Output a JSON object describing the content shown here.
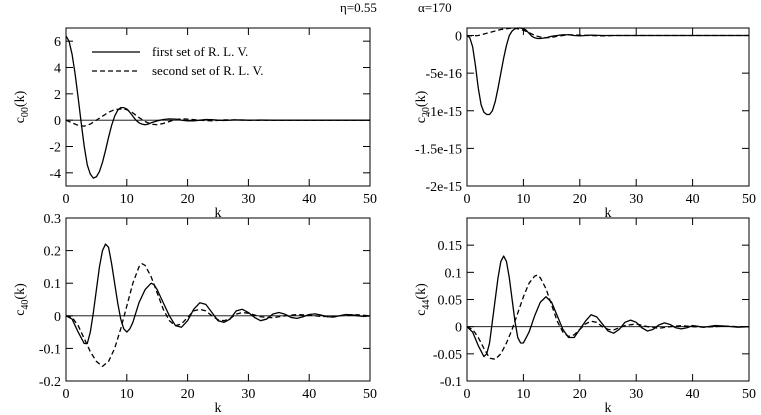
{
  "header": {
    "eta_label": "η=0.55",
    "alpha_label": "α=170"
  },
  "legend": [
    {
      "label": "first set of R. L. V.",
      "style": "solid"
    },
    {
      "label": "second set of R. L. V.",
      "style": "dashed"
    }
  ],
  "chart_data": [
    {
      "type": "line",
      "ylabel_main": "c",
      "ylabel_sub": "00",
      "ylabel_tail": "(k)",
      "xlabel": "k",
      "xlim": [
        0,
        50
      ],
      "ylim": [
        -5,
        7
      ],
      "xticks": [
        0,
        10,
        20,
        30,
        40,
        50
      ],
      "yticks": [
        -4,
        -2,
        0,
        2,
        4,
        6
      ],
      "ytick_labels": [
        "-4",
        "-2",
        "0",
        "2",
        "4",
        "6"
      ],
      "series": [
        {
          "name": "first set of R. L. V.",
          "style": "solid",
          "x": [
            0,
            0.5,
            1,
            1.5,
            2,
            2.5,
            3,
            3.5,
            4,
            4.5,
            5,
            5.5,
            6,
            6.5,
            7,
            7.5,
            8,
            8.5,
            9,
            9.5,
            10,
            10.5,
            11,
            11.5,
            12,
            12.5,
            13,
            13.5,
            14,
            15,
            16,
            17,
            18,
            19,
            20,
            21,
            22,
            23,
            24,
            25,
            26,
            28,
            30,
            32,
            34,
            36,
            40,
            45,
            50
          ],
          "y": [
            6.4,
            6.0,
            5.0,
            3.5,
            1.7,
            -0.2,
            -2.0,
            -3.4,
            -4.1,
            -4.4,
            -4.3,
            -3.9,
            -3.2,
            -2.3,
            -1.3,
            -0.4,
            0.3,
            0.75,
            0.95,
            0.95,
            0.85,
            0.6,
            0.3,
            0.0,
            -0.2,
            -0.3,
            -0.35,
            -0.3,
            -0.2,
            -0.05,
            0.05,
            0.1,
            0.08,
            0.0,
            -0.05,
            -0.05,
            0.0,
            0.05,
            0.04,
            0.0,
            -0.02,
            0.02,
            0.0,
            0.01,
            0.0,
            0.0,
            0.0,
            0.0,
            0.0
          ]
        },
        {
          "name": "second set of R. L. V.",
          "style": "dashed",
          "x": [
            0,
            1,
            2,
            3,
            4,
            5,
            6,
            7,
            8,
            9,
            10,
            11,
            12,
            13,
            14,
            15,
            16,
            17,
            18,
            19,
            20,
            22,
            24,
            26,
            28,
            30,
            35,
            40,
            45,
            50
          ],
          "y": [
            0.0,
            -0.2,
            -0.4,
            -0.45,
            -0.3,
            0.0,
            0.3,
            0.6,
            0.8,
            0.85,
            0.8,
            0.55,
            0.2,
            -0.1,
            -0.3,
            -0.35,
            -0.25,
            -0.1,
            0.05,
            0.1,
            0.08,
            0.0,
            -0.05,
            0.02,
            0.02,
            0.0,
            0.0,
            0.0,
            0.0,
            0.0
          ]
        }
      ]
    },
    {
      "type": "line",
      "ylabel_main": "c",
      "ylabel_sub": "20",
      "ylabel_tail": "(k)",
      "xlabel": "k",
      "xlim": [
        0,
        50
      ],
      "ylim": [
        -2e-15,
        1e-16
      ],
      "xticks": [
        0,
        10,
        20,
        30,
        40,
        50
      ],
      "yticks": [
        -2e-15,
        -1.5e-15,
        -1e-15,
        -5e-16,
        0
      ],
      "ytick_labels": [
        "-2e-15",
        "-1.5e-15",
        "-1e-15",
        "-5e-16",
        "0"
      ],
      "series": [
        {
          "name": "first set of R. L. V.",
          "style": "solid",
          "x": [
            0,
            0.5,
            1,
            1.5,
            2,
            2.5,
            3,
            3.5,
            4,
            4.5,
            5,
            5.5,
            6,
            6.5,
            7,
            7.5,
            8,
            8.5,
            9,
            9.5,
            10,
            10.5,
            11,
            11.5,
            12,
            12.5,
            13,
            14,
            15,
            16,
            17,
            18,
            19,
            20,
            21,
            22,
            24,
            26,
            28,
            30,
            35,
            40,
            45,
            50
          ],
          "y": [
            0,
            -3e-17,
            -1.5e-16,
            -4e-16,
            -7e-16,
            -9.2e-16,
            -1.02e-15,
            -1.05e-15,
            -1.05e-15,
            -1e-15,
            -8.8e-16,
            -7e-16,
            -5e-16,
            -3e-16,
            -1.3e-16,
            0.0,
            6e-17,
            9e-17,
            1e-16,
            1e-16,
            9e-17,
            7e-17,
            3e-17,
            -1e-17,
            -3e-17,
            -4e-17,
            -4e-17,
            -3e-17,
            -1e-17,
            0.0,
            1e-17,
            1e-17,
            0.0,
            -5e-18,
            0.0,
            5e-18,
            0.0,
            0.0,
            0.0,
            0.0,
            0.0,
            0.0,
            0.0,
            0.0
          ]
        },
        {
          "name": "second set of R. L. V.",
          "style": "dashed",
          "x": [
            0,
            1,
            2,
            3,
            4,
            5,
            6,
            7,
            8,
            9,
            10,
            11,
            12,
            13,
            14,
            15,
            16,
            18,
            20,
            22,
            24,
            26,
            30,
            35,
            40,
            45,
            50
          ],
          "y": [
            0,
            -5e-18,
            0.0,
            2e-17,
            4e-17,
            6e-17,
            8e-17,
            9e-17,
            1e-16,
            9e-17,
            7e-17,
            4e-17,
            0.0,
            -2e-17,
            -3e-17,
            -2.5e-17,
            -1e-17,
            1e-17,
            5e-18,
            0.0,
            -5e-18,
            0.0,
            0.0,
            0.0,
            0.0,
            0.0,
            0.0
          ]
        }
      ]
    },
    {
      "type": "line",
      "ylabel_main": "c",
      "ylabel_sub": "40",
      "ylabel_tail": "(k)",
      "xlabel": "k",
      "xlim": [
        0,
        50
      ],
      "ylim": [
        -0.2,
        0.3
      ],
      "xticks": [
        0,
        10,
        20,
        30,
        40,
        50
      ],
      "yticks": [
        -0.2,
        -0.1,
        0,
        0.1,
        0.2,
        0.3
      ],
      "ytick_labels": [
        "-0.2",
        "-0.1",
        "0",
        "0.1",
        "0.2",
        "0.3"
      ],
      "series": [
        {
          "name": "first set of R. L. V.",
          "style": "solid",
          "x": [
            0,
            1,
            2,
            3,
            3.5,
            4,
            4.5,
            5,
            5.5,
            6,
            6.5,
            7,
            7.5,
            8,
            8.5,
            9,
            9.5,
            10,
            10.5,
            11,
            11.5,
            12,
            13,
            14,
            14.5,
            15,
            16,
            17,
            18,
            19,
            20,
            21,
            22,
            23,
            24,
            25,
            26,
            27,
            28,
            29,
            30,
            31,
            32,
            33,
            34,
            35,
            36,
            37,
            38,
            39,
            40,
            41,
            42,
            43,
            44,
            45,
            46,
            47,
            48,
            49,
            50
          ],
          "y": [
            0,
            -0.01,
            -0.05,
            -0.085,
            -0.085,
            -0.05,
            0.01,
            0.08,
            0.15,
            0.2,
            0.22,
            0.21,
            0.16,
            0.1,
            0.04,
            -0.01,
            -0.04,
            -0.05,
            -0.04,
            -0.02,
            0.01,
            0.04,
            0.08,
            0.1,
            0.095,
            0.08,
            0.04,
            0.0,
            -0.03,
            -0.035,
            -0.015,
            0.02,
            0.04,
            0.035,
            0.01,
            -0.015,
            -0.02,
            -0.01,
            0.015,
            0.02,
            0.01,
            -0.005,
            -0.015,
            -0.01,
            0.005,
            0.01,
            0.005,
            -0.005,
            -0.008,
            -0.003,
            0.004,
            0.006,
            0.002,
            -0.003,
            -0.004,
            0.0,
            0.004,
            0.003,
            0.0,
            -0.002,
            0.0
          ]
        },
        {
          "name": "second set of R. L. V.",
          "style": "dashed",
          "x": [
            0,
            1,
            2,
            3,
            4,
            5,
            6,
            7,
            8,
            9,
            10,
            11,
            12,
            12.5,
            13,
            14,
            15,
            16,
            17,
            18,
            19,
            20,
            21,
            22,
            23,
            24,
            25,
            26,
            27,
            28,
            29,
            30,
            32,
            34,
            36,
            38,
            40,
            42,
            44,
            46,
            48,
            50
          ],
          "y": [
            0,
            -0.005,
            -0.03,
            -0.07,
            -0.11,
            -0.14,
            -0.155,
            -0.14,
            -0.1,
            -0.04,
            0.03,
            0.1,
            0.15,
            0.16,
            0.155,
            0.12,
            0.07,
            0.02,
            -0.015,
            -0.03,
            -0.025,
            -0.005,
            0.015,
            0.02,
            0.015,
            0.0,
            -0.012,
            -0.015,
            -0.008,
            0.005,
            0.01,
            0.008,
            -0.003,
            -0.006,
            0.0,
            0.004,
            0.002,
            -0.002,
            -0.002,
            0.002,
            0.003,
            0.0
          ]
        }
      ]
    },
    {
      "type": "line",
      "ylabel_main": "c",
      "ylabel_sub": "44",
      "ylabel_tail": "(k)",
      "xlabel": "k",
      "xlim": [
        0,
        50
      ],
      "ylim": [
        -0.1,
        0.2
      ],
      "xticks": [
        0,
        10,
        20,
        30,
        40,
        50
      ],
      "yticks": [
        -0.1,
        -0.05,
        0,
        0.05,
        0.1,
        0.15
      ],
      "ytick_labels": [
        "-0.1",
        "-0.05",
        "0",
        "0.05",
        "0.1",
        "0.15"
      ],
      "series": [
        {
          "name": "first set of R. L. V.",
          "style": "solid",
          "x": [
            0,
            1,
            2,
            3,
            3.5,
            4,
            4.5,
            5,
            5.5,
            6,
            6.5,
            7,
            7.5,
            8,
            8.5,
            9,
            9.5,
            10,
            10.5,
            11,
            12,
            13,
            14,
            15,
            16,
            17,
            18,
            19,
            20,
            21,
            22,
            23,
            24,
            25,
            26,
            27,
            28,
            29,
            30,
            31,
            32,
            33,
            34,
            35,
            36,
            37,
            38,
            39,
            40,
            42,
            44,
            46,
            48,
            50
          ],
          "y": [
            0,
            -0.01,
            -0.035,
            -0.055,
            -0.05,
            -0.03,
            0.01,
            0.05,
            0.09,
            0.12,
            0.13,
            0.12,
            0.09,
            0.05,
            0.01,
            -0.02,
            -0.03,
            -0.03,
            -0.02,
            -0.01,
            0.02,
            0.045,
            0.055,
            0.045,
            0.02,
            -0.005,
            -0.02,
            -0.02,
            -0.005,
            0.01,
            0.022,
            0.018,
            0.005,
            -0.008,
            -0.012,
            -0.005,
            0.008,
            0.012,
            0.008,
            -0.002,
            -0.008,
            -0.005,
            0.003,
            0.007,
            0.004,
            -0.002,
            -0.004,
            -0.002,
            0.002,
            -0.001,
            0.002,
            0.001,
            -0.001,
            0.0
          ]
        },
        {
          "name": "second set of R. L. V.",
          "style": "dashed",
          "x": [
            0,
            1,
            2,
            3,
            4,
            5,
            6,
            7,
            8,
            9,
            10,
            11,
            12,
            12.5,
            13,
            14,
            15,
            16,
            17,
            18,
            19,
            20,
            21,
            22,
            23,
            24,
            25,
            26,
            28,
            30,
            32,
            34,
            36,
            38,
            40,
            42,
            44,
            46,
            48,
            50
          ],
          "y": [
            0,
            -0.005,
            -0.02,
            -0.04,
            -0.058,
            -0.06,
            -0.05,
            -0.03,
            -0.005,
            0.025,
            0.055,
            0.08,
            0.093,
            0.095,
            0.09,
            0.07,
            0.04,
            0.01,
            -0.01,
            -0.018,
            -0.015,
            -0.005,
            0.005,
            0.01,
            0.008,
            0.0,
            -0.005,
            -0.006,
            0.002,
            0.005,
            0.0,
            -0.003,
            0.0,
            0.002,
            0.0,
            -0.001,
            0.0,
            0.001,
            0.0,
            0.0
          ]
        }
      ]
    }
  ]
}
